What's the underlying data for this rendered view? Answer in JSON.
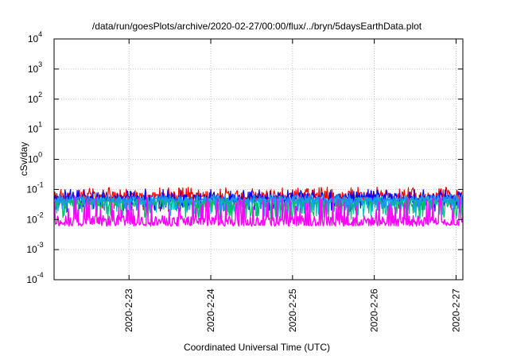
{
  "chart_data": {
    "type": "line",
    "title": "/data/run/goesPlots/archive/2020-02-27/00:00/flux/../bryn/5daysEarthData.plot",
    "xlabel": "Coordinated Universal Time (UTC)",
    "ylabel": "cSv/day",
    "yscale": "log",
    "ylim": [
      0.0001,
      10000
    ],
    "y_ticks": [
      {
        "base": "10",
        "exp": "-4",
        "value": 0.0001
      },
      {
        "base": "10",
        "exp": "-3",
        "value": 0.001
      },
      {
        "base": "10",
        "exp": "-2",
        "value": 0.01
      },
      {
        "base": "10",
        "exp": "-1",
        "value": 0.1
      },
      {
        "base": "10",
        "exp": "0",
        "value": 1
      },
      {
        "base": "10",
        "exp": "1",
        "value": 10
      },
      {
        "base": "10",
        "exp": "2",
        "value": 100
      },
      {
        "base": "10",
        "exp": "3",
        "value": 1000
      },
      {
        "base": "10",
        "exp": "4",
        "value": 10000
      }
    ],
    "xlim": [
      "2020-02-22T02:00",
      "2020-02-27T02:00"
    ],
    "x_ticks": [
      "2020-2-23",
      "2020-2-24",
      "2020-2-25",
      "2020-2-26",
      "2020-2-27"
    ],
    "grid": true,
    "series": [
      {
        "color": "#ff0000",
        "min": 0.02,
        "max": 0.12,
        "typical": 0.06
      },
      {
        "color": "#0000ff",
        "min": 0.018,
        "max": 0.1,
        "typical": 0.05
      },
      {
        "color": "#00c0c0",
        "min": 0.012,
        "max": 0.06,
        "typical": 0.04
      },
      {
        "color": "#00c060",
        "min": 0.01,
        "max": 0.05,
        "typical": 0.035
      },
      {
        "color": "#1e90ff",
        "min": 0.02,
        "max": 0.07,
        "typical": 0.045
      },
      {
        "color": "#ff00ff",
        "min": 0.006,
        "max": 0.06,
        "typical": 0.009
      }
    ]
  }
}
